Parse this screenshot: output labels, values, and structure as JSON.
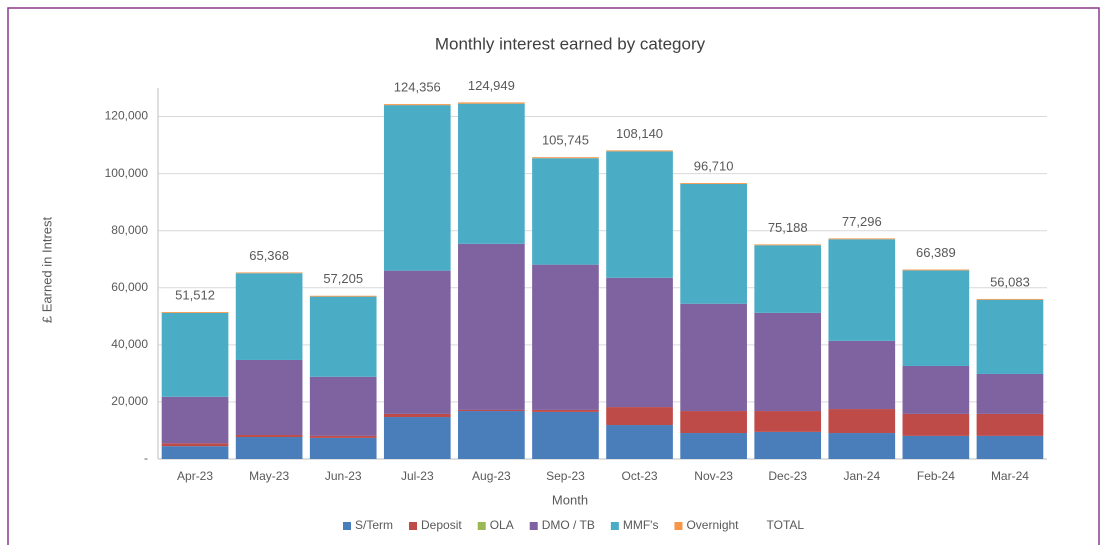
{
  "chart_data": {
    "type": "bar",
    "stacked": true,
    "title": "Monthly interest earned by category",
    "x_label": "Month",
    "y_label": "£ Earned in Intrest",
    "categories": [
      "Apr-23",
      "May-23",
      "Jun-23",
      "Jul-23",
      "Aug-23",
      "Sep-23",
      "Oct-23",
      "Nov-23",
      "Dec-23",
      "Jan-24",
      "Feb-24",
      "Mar-24"
    ],
    "series": [
      {
        "name": "S/Term",
        "color": "#4a7ebb",
        "values": [
          4500,
          7700,
          7400,
          14700,
          16800,
          16500,
          11900,
          9100,
          9500,
          9100,
          8100,
          8100
        ]
      },
      {
        "name": "Deposit",
        "color": "#be4b48",
        "values": [
          1000,
          700,
          700,
          1100,
          400,
          700,
          6300,
          7700,
          7300,
          8400,
          7700,
          7700
        ]
      },
      {
        "name": "OLA",
        "color": "#98b954",
        "values": [
          0,
          0,
          0,
          0,
          0,
          0,
          0,
          0,
          0,
          0,
          0,
          0
        ]
      },
      {
        "name": "DMO / TB",
        "color": "#7f63a1",
        "values": [
          16300,
          26300,
          20700,
          50200,
          58200,
          50900,
          45300,
          37600,
          34400,
          23900,
          16800,
          14000
        ]
      },
      {
        "name": "MMF's",
        "color": "#4bacc6",
        "values": [
          29400,
          30400,
          28100,
          58000,
          49100,
          37300,
          44300,
          42000,
          23700,
          35600,
          33500,
          26000
        ]
      },
      {
        "name": "Overnight",
        "color": "#f79646",
        "values": [
          312,
          268,
          305,
          356,
          449,
          345,
          340,
          310,
          288,
          296,
          289,
          283
        ]
      },
      {
        "name": "TOTAL",
        "color": null,
        "values": [
          51512,
          65368,
          57205,
          124356,
          124949,
          105745,
          108140,
          96710,
          75188,
          77296,
          66389,
          56083
        ],
        "value_labels": [
          "51,512",
          "65,368",
          "57,205",
          "124,356",
          "124,949",
          "105,745",
          "108,140",
          "96,710",
          "75,188",
          "77,296",
          "66,389",
          "56,083"
        ]
      }
    ],
    "ylim": [
      0,
      130000
    ],
    "yticks": [
      {
        "value": 0,
        "label": "-"
      },
      {
        "value": 20000,
        "label": "20,000"
      },
      {
        "value": 40000,
        "label": "40,000"
      },
      {
        "value": 60000,
        "label": "60,000"
      },
      {
        "value": 80000,
        "label": "80,000"
      },
      {
        "value": 100000,
        "label": "100,000"
      },
      {
        "value": 120000,
        "label": "120,000"
      }
    ],
    "grid": true,
    "legend": "bottom"
  }
}
